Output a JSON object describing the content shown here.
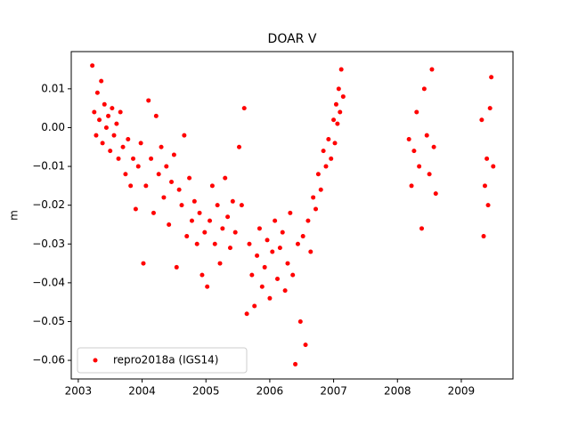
{
  "chart_data": {
    "type": "scatter",
    "title": "DOAR V",
    "y_label": "m",
    "series": [
      {
        "name": "repro2018a (IGS14)",
        "color": "#ff0000",
        "x": [
          2003.22,
          2003.25,
          2003.28,
          2003.3,
          2003.33,
          2003.36,
          2003.38,
          2003.41,
          2003.44,
          2003.47,
          2003.5,
          2003.53,
          2003.56,
          2003.6,
          2003.63,
          2003.66,
          2003.7,
          2003.74,
          2003.78,
          2003.82,
          2003.86,
          2003.9,
          2003.94,
          2003.98,
          2004.02,
          2004.06,
          2004.1,
          2004.14,
          2004.18,
          2004.22,
          2004.26,
          2004.3,
          2004.34,
          2004.38,
          2004.42,
          2004.46,
          2004.5,
          2004.54,
          2004.58,
          2004.62,
          2004.66,
          2004.7,
          2004.74,
          2004.78,
          2004.82,
          2004.86,
          2004.9,
          2004.94,
          2004.98,
          2005.02,
          2005.06,
          2005.1,
          2005.14,
          2005.18,
          2005.22,
          2005.26,
          2005.3,
          2005.34,
          2005.38,
          2005.42,
          2005.46,
          2005.52,
          2005.56,
          2005.6,
          2005.64,
          2005.68,
          2005.72,
          2005.76,
          2005.8,
          2005.84,
          2005.88,
          2005.92,
          2005.96,
          2006.0,
          2006.04,
          2006.08,
          2006.12,
          2006.16,
          2006.2,
          2006.24,
          2006.28,
          2006.32,
          2006.36,
          2006.4,
          2006.44,
          2006.48,
          2006.52,
          2006.56,
          2006.6,
          2006.64,
          2006.68,
          2006.72,
          2006.76,
          2006.8,
          2006.84,
          2006.88,
          2006.92,
          2006.96,
          2007.0,
          2007.02,
          2007.04,
          2007.06,
          2007.08,
          2007.1,
          2007.12,
          2007.15,
          2008.18,
          2008.22,
          2008.26,
          2008.3,
          2008.34,
          2008.38,
          2008.42,
          2008.46,
          2008.5,
          2008.54,
          2008.57,
          2008.6,
          2009.32,
          2009.35,
          2009.37,
          2009.4,
          2009.42,
          2009.45,
          2009.47,
          2009.5
        ],
        "values": [
          0.016,
          0.004,
          -0.002,
          0.009,
          0.002,
          0.012,
          -0.004,
          0.006,
          0.0,
          0.003,
          -0.006,
          0.005,
          -0.002,
          0.001,
          -0.008,
          0.004,
          -0.005,
          -0.012,
          -0.003,
          -0.015,
          -0.008,
          -0.021,
          -0.01,
          -0.004,
          -0.035,
          -0.015,
          0.007,
          -0.008,
          -0.022,
          0.003,
          -0.012,
          -0.005,
          -0.018,
          -0.01,
          -0.025,
          -0.014,
          -0.007,
          -0.036,
          -0.016,
          -0.02,
          -0.002,
          -0.028,
          -0.013,
          -0.024,
          -0.019,
          -0.03,
          -0.022,
          -0.038,
          -0.027,
          -0.041,
          -0.024,
          -0.015,
          -0.03,
          -0.02,
          -0.035,
          -0.026,
          -0.013,
          -0.023,
          -0.031,
          -0.019,
          -0.027,
          -0.005,
          -0.02,
          0.005,
          -0.048,
          -0.03,
          -0.038,
          -0.046,
          -0.033,
          -0.026,
          -0.041,
          -0.036,
          -0.029,
          -0.044,
          -0.032,
          -0.024,
          -0.039,
          -0.031,
          -0.027,
          -0.042,
          -0.035,
          -0.022,
          -0.038,
          -0.061,
          -0.03,
          -0.05,
          -0.028,
          -0.056,
          -0.024,
          -0.032,
          -0.018,
          -0.021,
          -0.012,
          -0.016,
          -0.006,
          -0.01,
          -0.003,
          -0.008,
          0.002,
          -0.004,
          0.006,
          0.001,
          0.01,
          0.004,
          0.015,
          0.008,
          -0.003,
          -0.015,
          -0.006,
          0.004,
          -0.01,
          -0.026,
          0.01,
          -0.002,
          -0.012,
          0.015,
          -0.005,
          -0.017,
          0.002,
          -0.028,
          -0.015,
          -0.008,
          -0.02,
          0.005,
          0.013,
          -0.01
        ]
      }
    ],
    "xlim": [
      2002.89,
      2009.81
    ],
    "xticks": [
      2003,
      2004,
      2005,
      2006,
      2007,
      2008,
      2009
    ],
    "ylim": [
      -0.0648,
      0.0196
    ],
    "yticks": [
      {
        "value": 0.01,
        "label": "0.01"
      },
      {
        "value": 0,
        "label": "0.00"
      },
      {
        "value": -0.01,
        "label": "−0.01"
      },
      {
        "value": -0.02,
        "label": "−0.02"
      },
      {
        "value": -0.03,
        "label": "−0.03"
      },
      {
        "value": -0.04,
        "label": "−0.04"
      },
      {
        "value": -0.05,
        "label": "−0.05"
      },
      {
        "value": -0.06,
        "label": "−0.06"
      }
    ],
    "grid": false,
    "legend": "lower left"
  }
}
